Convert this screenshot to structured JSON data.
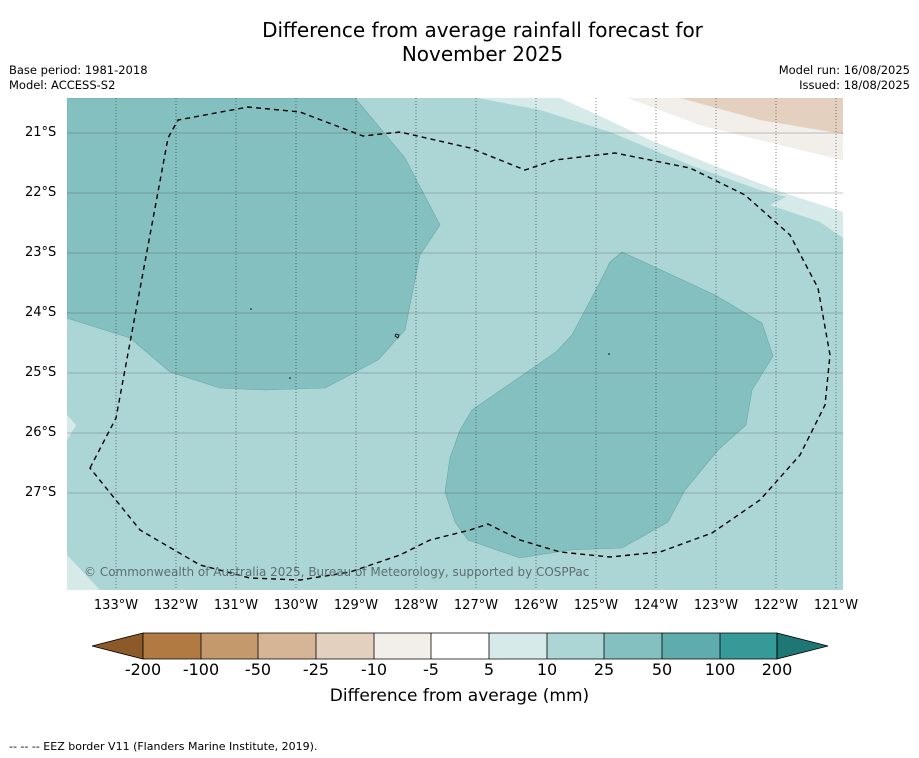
{
  "title": "Difference from average rainfall forecast for",
  "subtitle": "November 2025",
  "base_period": "Base period: 1981-2018",
  "model": "Model: ACCESS-S2",
  "model_run": "Model run: 16/08/2025",
  "issued": "Issued: 18/08/2025",
  "copyright": "© Commonwealth of Australia 2025, Bureau of Meteorology, supported by COSPPac",
  "latitude_labels": [
    "21°S",
    "22°S",
    "23°S",
    "24°S",
    "25°S",
    "26°S",
    "27°S"
  ],
  "longitude_labels": [
    "133°W",
    "132°W",
    "131°W",
    "130°W",
    "129°W",
    "128°W",
    "127°W",
    "126°W",
    "125°W",
    "124°W",
    "123°W",
    "122°W",
    "121°W"
  ],
  "legend": {
    "label": "Difference from average (mm)",
    "ticks": [
      "-200",
      "-100",
      "-50",
      "-25",
      "-10",
      "-5",
      "5",
      "10",
      "25",
      "50",
      "100",
      "200"
    ],
    "colors": [
      "#8c5a28",
      "#b07a42",
      "#c49a6c",
      "#d5b596",
      "#e4d0be",
      "#f2eeea",
      "#ffffff",
      "#d6eae9",
      "#acd6d6",
      "#83c0bf",
      "#5eadac",
      "#369a98",
      "#1f7775"
    ]
  },
  "footnote": "-- -- -- EEZ border V11 (Flanders Marine Institute, 2019)."
}
